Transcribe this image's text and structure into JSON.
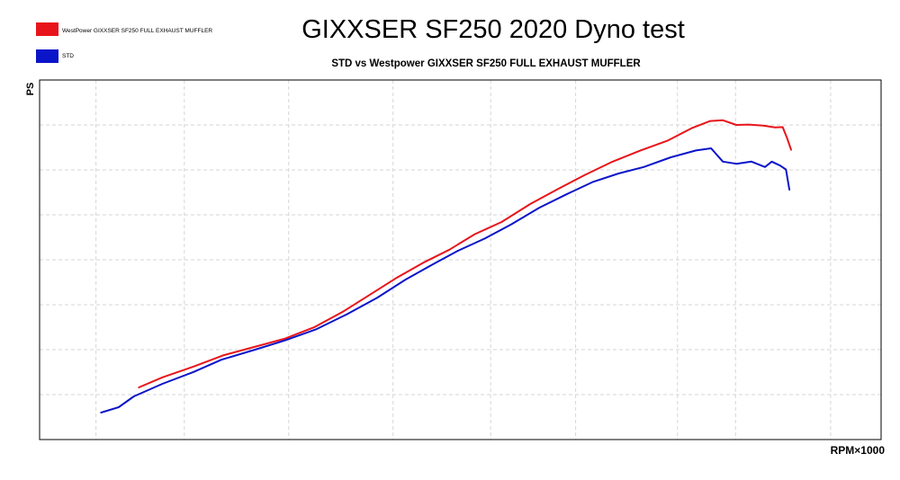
{
  "chart_data": {
    "type": "line",
    "title": "GIXXSER SF250 2020 Dyno test",
    "subtitle": "STD vs Westpower GIXXSER SF250 FULL EXHAUST MUFFLER",
    "xlabel": "RPM×1000",
    "ylabel": "PS",
    "xlim": [
      0,
      100
    ],
    "ylim": [
      0,
      100
    ],
    "grid": true,
    "legend_position": "top-left",
    "series": [
      {
        "name": "WestPower GIXXSER SF250 FULL EXHAUST MUFFLER",
        "color": "#e8141b",
        "x": [
          11.8,
          14.6,
          18.3,
          21.8,
          25.9,
          29.2,
          32.7,
          36.0,
          39.2,
          42.3,
          45.6,
          48.7,
          51.7,
          54.9,
          58.3,
          61.6,
          64.8,
          67.9,
          71.4,
          74.6,
          77.5,
          79.7,
          81.2,
          82.8,
          84.3,
          86.0,
          87.4,
          88.3,
          88.8,
          89.3
        ],
        "y": [
          14.5,
          17.3,
          20.3,
          23.4,
          26.0,
          28.1,
          31.3,
          35.5,
          40.2,
          44.8,
          49.2,
          52.8,
          57.1,
          60.5,
          65.5,
          69.7,
          73.6,
          77.1,
          80.4,
          83.1,
          86.6,
          88.6,
          88.8,
          87.5,
          87.6,
          87.3,
          86.8,
          86.9,
          84.0,
          80.6
        ]
      },
      {
        "name": "STD",
        "color": "#0a14c9",
        "x": [
          7.3,
          9.4,
          11.2,
          14.6,
          18.3,
          21.6,
          25.6,
          29.2,
          32.8,
          36.4,
          40.1,
          43.5,
          46.7,
          49.8,
          52.9,
          56.1,
          59.4,
          62.7,
          65.7,
          68.8,
          71.8,
          75.0,
          78.0,
          79.8,
          81.2,
          82.8,
          84.6,
          86.2,
          87.0,
          88.0,
          88.7,
          89.1
        ],
        "y": [
          7.5,
          9.0,
          12.0,
          15.5,
          18.8,
          22.2,
          25.0,
          27.6,
          30.6,
          34.7,
          39.4,
          44.5,
          48.7,
          52.6,
          55.9,
          59.9,
          64.5,
          68.3,
          71.6,
          74.0,
          75.8,
          78.5,
          80.4,
          81.0,
          77.3,
          76.7,
          77.3,
          75.8,
          77.3,
          76.2,
          75.1,
          69.5
        ]
      }
    ]
  }
}
